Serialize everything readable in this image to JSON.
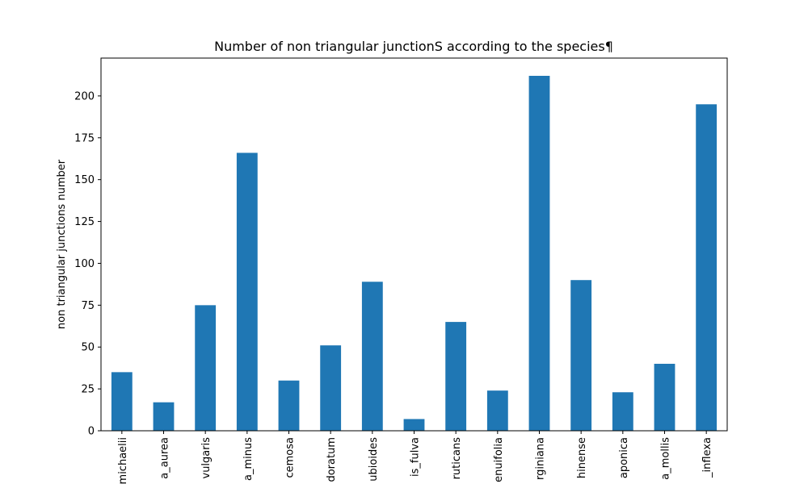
{
  "chart_data": {
    "type": "bar",
    "title": "Number of non triangular junctionS according to the species¶",
    "xlabel": "",
    "ylabel": "non triangular junctions number",
    "categories": [
      "michaelii",
      "a_aurea",
      "vulgaris",
      "a_minus",
      "cemosa",
      "doratum",
      "ubioides",
      "is_fulva",
      "ruticans",
      "enuifolia",
      "rginiana",
      "hinense",
      "aponica",
      "a_mollis",
      "_inflexa"
    ],
    "values": [
      35,
      17,
      75,
      166,
      30,
      51,
      89,
      7,
      65,
      24,
      212,
      90,
      23,
      40,
      195
    ],
    "ylim": [
      0,
      222.6
    ],
    "yticks": [
      0,
      25,
      50,
      75,
      100,
      125,
      150,
      175,
      200
    ],
    "grid": false,
    "bar_color": "#1f77b4"
  }
}
